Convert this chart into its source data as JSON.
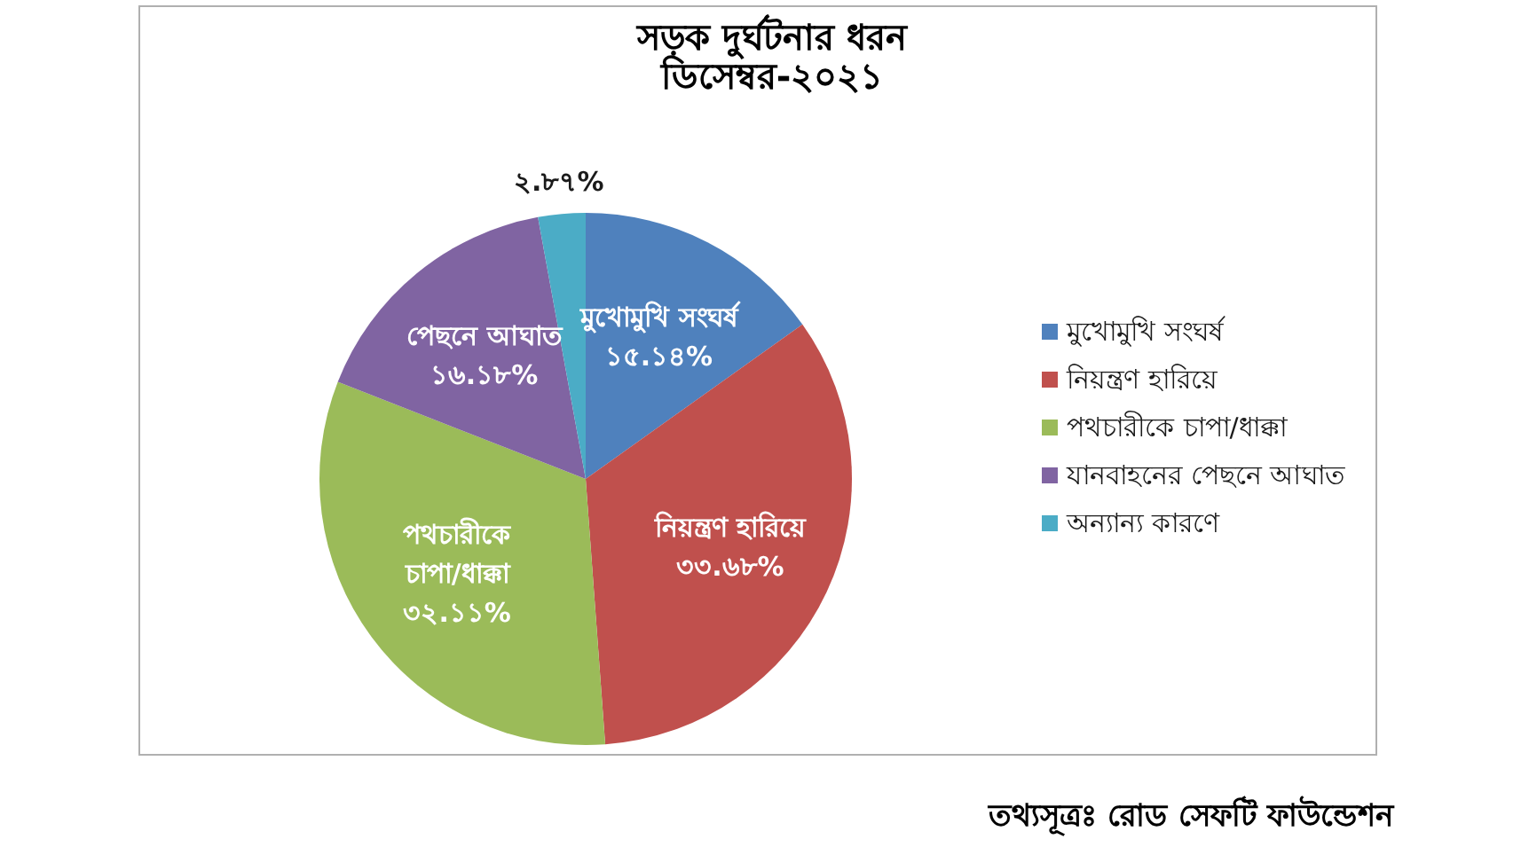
{
  "chart_data": {
    "type": "pie",
    "title": "সড়ক দুর্ঘটনার ধরন",
    "subtitle": "ডিসেম্বর-২০২১",
    "categories": [
      "মুখোমুখি সংঘর্ষ",
      "নিয়ন্ত্রণ হারিয়ে",
      "পথচারীকে চাপা/ধাক্কা",
      "যানবাহনের পেছনে আঘাত",
      "অন্যান্য কারণে"
    ],
    "values": [
      15.14,
      33.68,
      32.11,
      16.18,
      2.87
    ],
    "colors": [
      "#4f81bd",
      "#c0504d",
      "#9bbb59",
      "#8064a2",
      "#4bacc6"
    ],
    "value_labels": [
      "মুখোমুখি সংঘর্ষ\n১৫.১৪%",
      "নিয়ন্ত্রণ হারিয়ে\n৩৩.৬৮%",
      "পথচারীকে\nচাপা/ধাক্কা\n৩২.১১%",
      "পেছনে আঘাত\n১৬.১৮%",
      "২.৮৭%"
    ],
    "legend": "right",
    "annotations": [
      "তথ্যসূত্রঃ রোড সেফটি ফাউন্ডেশন"
    ]
  }
}
